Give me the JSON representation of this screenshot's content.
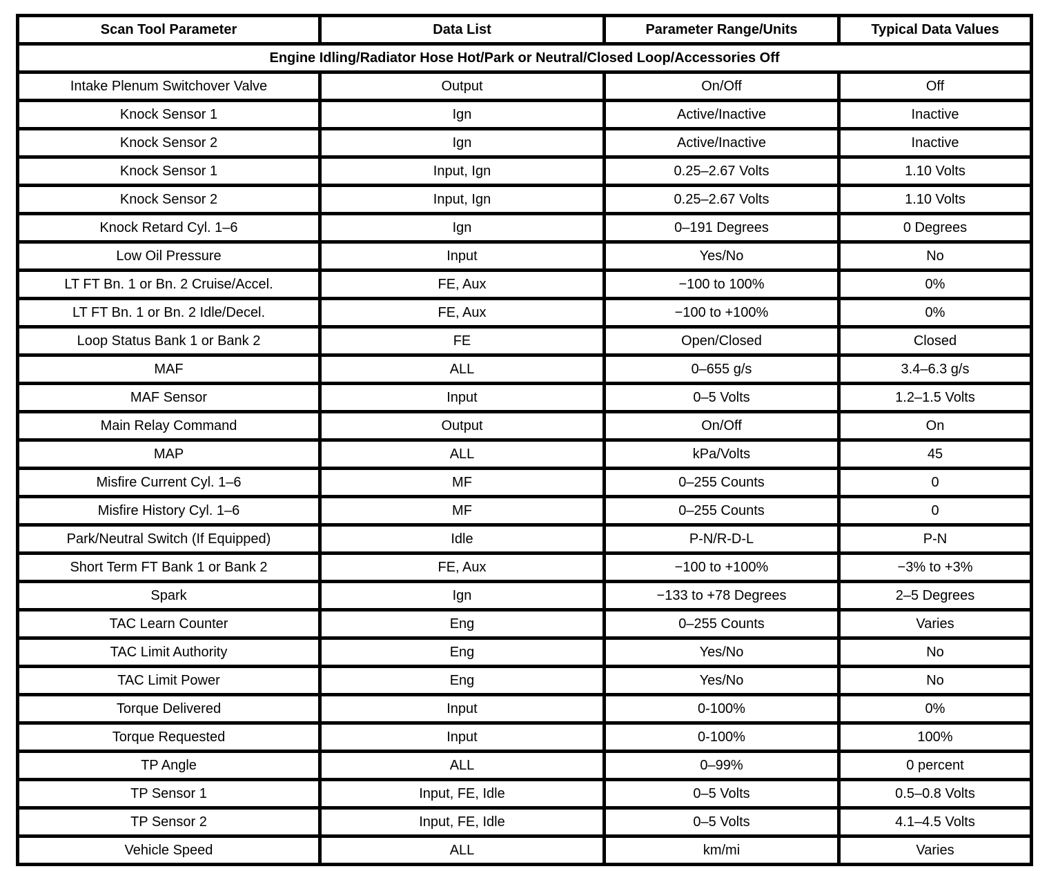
{
  "colors": {
    "border": "#000000",
    "background": "#ffffff",
    "text": "#000000"
  },
  "table": {
    "columns": [
      {
        "label": "Scan Tool Parameter"
      },
      {
        "label": "Data List"
      },
      {
        "label": "Parameter Range/Units"
      },
      {
        "label": "Typical Data Values"
      }
    ],
    "section_header": "Engine Idling/Radiator Hose Hot/Park or Neutral/Closed Loop/Accessories Off",
    "rows": [
      {
        "param": "Intake Plenum Switchover Valve",
        "data_list": "Output",
        "range": "On/Off",
        "typical": "Off"
      },
      {
        "param": "Knock Sensor 1",
        "data_list": "Ign",
        "range": "Active/Inactive",
        "typical": "Inactive"
      },
      {
        "param": "Knock Sensor 2",
        "data_list": "Ign",
        "range": "Active/Inactive",
        "typical": "Inactive"
      },
      {
        "param": "Knock Sensor 1",
        "data_list": "Input, Ign",
        "range": "0.25–2.67 Volts",
        "typical": "1.10 Volts"
      },
      {
        "param": "Knock Sensor 2",
        "data_list": "Input, Ign",
        "range": "0.25–2.67 Volts",
        "typical": "1.10 Volts"
      },
      {
        "param": "Knock Retard Cyl. 1–6",
        "data_list": "Ign",
        "range": "0–191 Degrees",
        "typical": "0 Degrees"
      },
      {
        "param": "Low Oil Pressure",
        "data_list": "Input",
        "range": "Yes/No",
        "typical": "No"
      },
      {
        "param": "LT FT Bn. 1 or Bn. 2 Cruise/Accel.",
        "data_list": "FE, Aux",
        "range": "−100 to 100%",
        "typical": "0%"
      },
      {
        "param": "LT FT Bn. 1 or Bn. 2 Idle/Decel.",
        "data_list": "FE, Aux",
        "range": "−100 to +100%",
        "typical": "0%"
      },
      {
        "param": "Loop Status Bank 1 or Bank 2",
        "data_list": "FE",
        "range": "Open/Closed",
        "typical": "Closed"
      },
      {
        "param": "MAF",
        "data_list": "ALL",
        "range": "0–655 g/s",
        "typical": "3.4–6.3 g/s"
      },
      {
        "param": "MAF Sensor",
        "data_list": "Input",
        "range": "0–5 Volts",
        "typical": "1.2–1.5 Volts"
      },
      {
        "param": "Main Relay Command",
        "data_list": "Output",
        "range": "On/Off",
        "typical": "On"
      },
      {
        "param": "MAP",
        "data_list": "ALL",
        "range": "kPa/Volts",
        "typical": "45"
      },
      {
        "param": "Misfire Current Cyl. 1–6",
        "data_list": "MF",
        "range": "0–255 Counts",
        "typical": "0"
      },
      {
        "param": "Misfire History Cyl. 1–6",
        "data_list": "MF",
        "range": "0–255 Counts",
        "typical": "0"
      },
      {
        "param": "Park/Neutral Switch (If Equipped)",
        "data_list": "Idle",
        "range": "P-N/R-D-L",
        "typical": "P-N"
      },
      {
        "param": "Short Term FT Bank 1 or Bank 2",
        "data_list": "FE, Aux",
        "range": "−100 to +100%",
        "typical": "−3% to +3%"
      },
      {
        "param": "Spark",
        "data_list": "Ign",
        "range": "−133 to +78 Degrees",
        "typical": "2–5 Degrees"
      },
      {
        "param": "TAC Learn Counter",
        "data_list": "Eng",
        "range": "0–255 Counts",
        "typical": "Varies"
      },
      {
        "param": "TAC Limit Authority",
        "data_list": "Eng",
        "range": "Yes/No",
        "typical": "No"
      },
      {
        "param": "TAC Limit Power",
        "data_list": "Eng",
        "range": "Yes/No",
        "typical": "No"
      },
      {
        "param": "Torque Delivered",
        "data_list": "Input",
        "range": "0-100%",
        "typical": "0%"
      },
      {
        "param": "Torque Requested",
        "data_list": "Input",
        "range": "0-100%",
        "typical": "100%"
      },
      {
        "param": "TP Angle",
        "data_list": "ALL",
        "range": "0–99%",
        "typical": "0 percent"
      },
      {
        "param": "TP Sensor 1",
        "data_list": "Input, FE, Idle",
        "range": "0–5 Volts",
        "typical": "0.5–0.8 Volts"
      },
      {
        "param": "TP Sensor 2",
        "data_list": "Input, FE, Idle",
        "range": "0–5 Volts",
        "typical": "4.1–4.5 Volts"
      },
      {
        "param": "Vehicle Speed",
        "data_list": "ALL",
        "range": "km/mi",
        "typical": "Varies"
      }
    ]
  }
}
